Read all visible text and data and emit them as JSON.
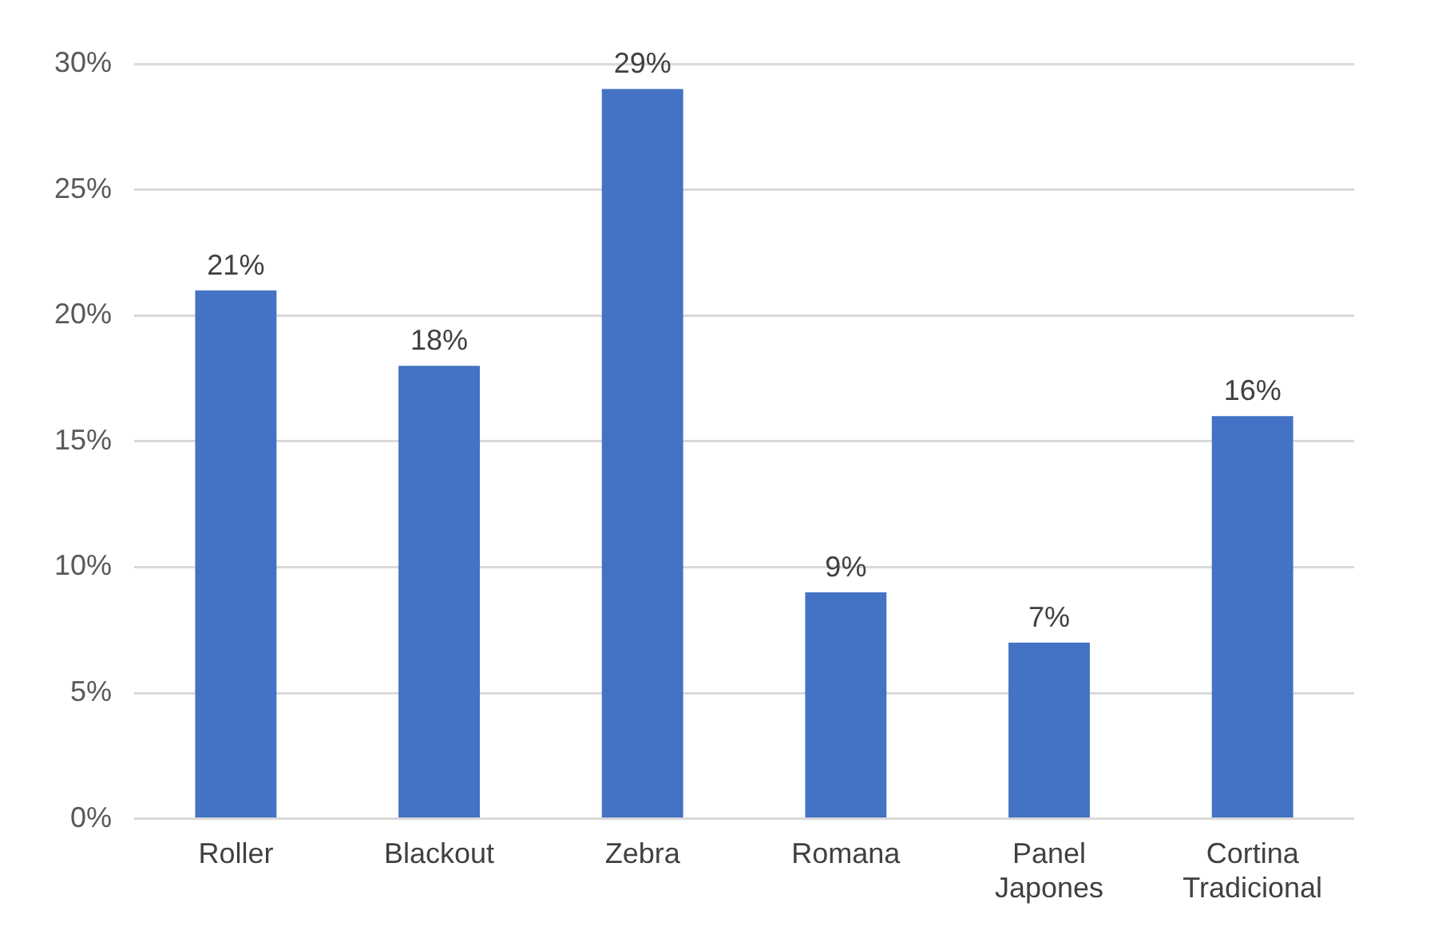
{
  "chart_data": {
    "type": "bar",
    "categories": [
      "Roller",
      "Blackout",
      "Zebra",
      "Romana",
      "Panel Japones",
      "Cortina Tradicional"
    ],
    "values": [
      21,
      18,
      29,
      9,
      7,
      16
    ],
    "color": "#4472c4",
    "value_labels": [
      "21%",
      "18%",
      "29%",
      "9%",
      "7%",
      "16%"
    ],
    "ylim": [
      0,
      30
    ],
    "yticks": [
      {
        "value": 0,
        "label": "0%"
      },
      {
        "value": 5,
        "label": "5%"
      },
      {
        "value": 10,
        "label": "10%"
      },
      {
        "value": 15,
        "label": "15%"
      },
      {
        "value": 20,
        "label": "20%"
      },
      {
        "value": 25,
        "label": "25%"
      },
      {
        "value": 30,
        "label": "30%"
      }
    ],
    "grid": "y",
    "legend": false
  }
}
